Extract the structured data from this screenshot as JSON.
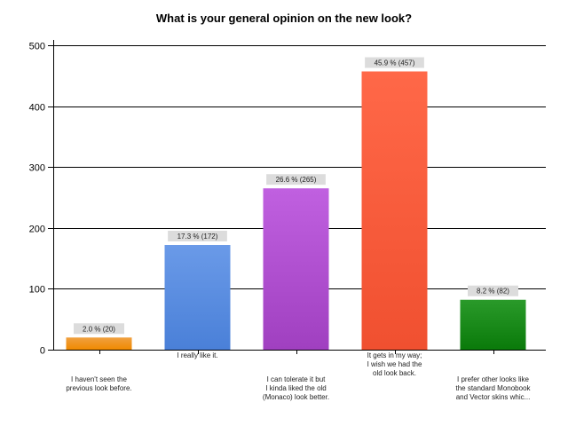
{
  "chart_data": {
    "type": "bar",
    "title": "What is your general opinion on the new look?",
    "xlabel": "",
    "ylabel": "",
    "ylim": [
      0,
      500
    ],
    "yticks": [
      "0",
      "100",
      "200",
      "300",
      "400",
      "500"
    ],
    "grid": true,
    "categories": [
      [
        "I haven't seen the",
        "previous look before."
      ],
      [
        "I really like it."
      ],
      [
        "I can tolerate it but",
        "I kinda liked the old",
        "(Monaco) look better."
      ],
      [
        "It gets in my way;",
        "I wish we had the",
        "old look back."
      ],
      [
        "I prefer other looks like",
        "the standard Monobook",
        "and Vector skins whic..."
      ]
    ],
    "values": [
      20,
      172,
      265,
      457,
      82
    ],
    "data_labels": [
      "2.0 % (20)",
      "17.3 % (172)",
      "26.6 % (265)",
      "45.9 % (457)",
      "8.2 % (82)"
    ],
    "colors": [
      "#f08a00",
      "#4a80d8",
      "#a040c0",
      "#f05030",
      "#0a7a0a"
    ],
    "colors_light": [
      "#f0a040",
      "#6a9ae8",
      "#c060e0",
      "#ff6848",
      "#2a9a2a"
    ]
  }
}
